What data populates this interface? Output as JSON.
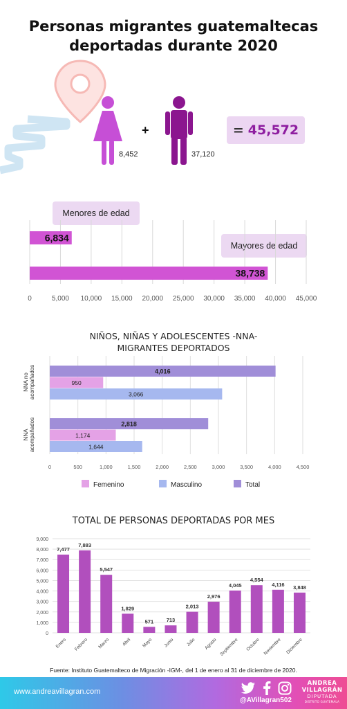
{
  "header": {
    "title_line1": "Personas migrantes guatemaltecas",
    "title_line2": "deportadas durante 2020"
  },
  "summary": {
    "female_count": "8,452",
    "male_count": "37,120",
    "plus": "+",
    "equals": "=",
    "total": "45,572",
    "female_icon": "female-person-icon",
    "male_icon": "male-person-icon",
    "colors": {
      "female": "#c64fd6",
      "male": "#8b168f",
      "total_bg": "#ecd6f2",
      "total_text": "#8e1ea0"
    }
  },
  "age_labels": {
    "minors": "Menores de edad",
    "adults": "Mayores de edad"
  },
  "nna_title": {
    "line1": "NIÑOS, NIÑAS Y ADOLESCENTES -NNA-",
    "line2": "MIGRANTES DEPORTADOS"
  },
  "nna_legend": {
    "female": "Femenino",
    "male": "Masculino",
    "total": "Total"
  },
  "monthly_title": "TOTAL DE PERSONAS DEPORTADAS POR MES",
  "chart_data": [
    {
      "type": "bar",
      "orientation": "horizontal",
      "categories": [
        "Menores de edad",
        "Mayores de edad"
      ],
      "values": [
        6834,
        38738
      ],
      "value_labels": [
        "6,834",
        "38,738"
      ],
      "xlim": [
        0,
        45000
      ],
      "ticks": [
        "0",
        "5,000",
        "10,000",
        "15,000",
        "20,000",
        "25,000",
        "30,000",
        "35,000",
        "40,000",
        "45,000"
      ],
      "tick_values": [
        0,
        5000,
        10000,
        15000,
        20000,
        25000,
        30000,
        35000,
        40000,
        45000
      ],
      "grid": true,
      "color": "#d154d4"
    },
    {
      "type": "bar",
      "orientation": "horizontal",
      "title": "NIÑOS, NIÑAS Y ADOLESCENTES -NNA- MIGRANTES DEPORTADOS",
      "categories": [
        "NNA no acompañados",
        "NNA acompañados"
      ],
      "series": [
        {
          "name": "Total",
          "values": [
            4016,
            2818
          ],
          "labels": [
            "4,016",
            "2,818"
          ],
          "color": "#a08ed8"
        },
        {
          "name": "Femenino",
          "values": [
            950,
            1174
          ],
          "labels": [
            "950",
            "1,174"
          ],
          "color": "#e4a2e6"
        },
        {
          "name": "Masculino",
          "values": [
            3066,
            1644
          ],
          "labels": [
            "3,066",
            "1,644"
          ],
          "color": "#a6b8ef"
        }
      ],
      "xlim": [
        0,
        4500
      ],
      "ticks": [
        "0",
        "500",
        "1,000",
        "1,500",
        "2,000",
        "2,500",
        "3,000",
        "3,500",
        "4,000",
        "4,500"
      ],
      "tick_values": [
        0,
        500,
        1000,
        1500,
        2000,
        2500,
        3000,
        3500,
        4000,
        4500
      ],
      "grid": true,
      "legend": "bottom"
    },
    {
      "type": "bar",
      "title": "TOTAL DE PERSONAS DEPORTADAS POR MES",
      "categories": [
        "Enero",
        "Febrero",
        "Marzo",
        "Abril",
        "Mayo",
        "Junio",
        "Julio",
        "Agosto",
        "Septiembre",
        "Octubre",
        "Noviembre",
        "Diciembre"
      ],
      "values": [
        7477,
        7883,
        5547,
        1829,
        571,
        713,
        2013,
        2976,
        4045,
        4554,
        4116,
        3848
      ],
      "value_labels": [
        "7,477",
        "7,883",
        "5,547",
        "1,829",
        "571",
        "713",
        "2,013",
        "2,976",
        "4,045",
        "4,554",
        "4,116",
        "3,848"
      ],
      "ylim": [
        0,
        9000
      ],
      "ticks": [
        "0",
        "1,000",
        "2,000",
        "3,000",
        "4,000",
        "5,000",
        "6,000",
        "7,000",
        "8,000",
        "9,000"
      ],
      "tick_values": [
        0,
        1000,
        2000,
        3000,
        4000,
        5000,
        6000,
        7000,
        8000,
        9000
      ],
      "grid": true,
      "color": "#b14fbd"
    }
  ],
  "footer": {
    "source": "Fuente: Instituto Guatemalteco de Migración -IGM-, del 1 de enero al 31 de diciembre de 2020.",
    "url": "www.andreavillagran.com",
    "handle": "@AVillagran502",
    "brand_line1": "ANDREA",
    "brand_line2": "VILLAGRÁN",
    "brand_line3": "DIPUTADA",
    "brand_line4": "DISTRITO GUATEMALA",
    "icons": [
      "twitter-icon",
      "facebook-icon",
      "instagram-icon"
    ]
  }
}
